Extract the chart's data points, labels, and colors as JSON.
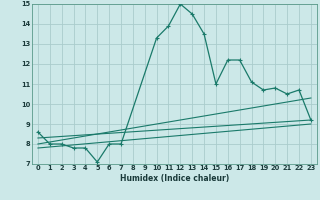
{
  "xlabel": "Humidex (Indice chaleur)",
  "bg_color": "#cce8e8",
  "grid_color": "#aacccc",
  "line_color": "#1a7a6a",
  "xlim": [
    -0.5,
    23.5
  ],
  "ylim": [
    7,
    15
  ],
  "xticks": [
    0,
    1,
    2,
    3,
    4,
    5,
    6,
    7,
    8,
    9,
    10,
    11,
    12,
    13,
    14,
    15,
    16,
    17,
    18,
    19,
    20,
    21,
    22,
    23
  ],
  "yticks": [
    7,
    8,
    9,
    10,
    11,
    12,
    13,
    14,
    15
  ],
  "line1_x": [
    0,
    1,
    2,
    3,
    4,
    5,
    6,
    7,
    10,
    11,
    12,
    13,
    14,
    15,
    16,
    17,
    18,
    19,
    20,
    21,
    22,
    23
  ],
  "line1_y": [
    8.6,
    8.0,
    8.0,
    7.8,
    7.8,
    7.1,
    8.0,
    8.0,
    13.3,
    13.9,
    15.0,
    14.5,
    13.5,
    11.0,
    12.2,
    12.2,
    11.1,
    10.7,
    10.8,
    10.5,
    10.7,
    9.2
  ],
  "line2_x": [
    0,
    23
  ],
  "line2_y": [
    8.3,
    9.2
  ],
  "line3_x": [
    0,
    23
  ],
  "line3_y": [
    8.0,
    10.3
  ],
  "line4_x": [
    0,
    23
  ],
  "line4_y": [
    7.8,
    9.0
  ]
}
